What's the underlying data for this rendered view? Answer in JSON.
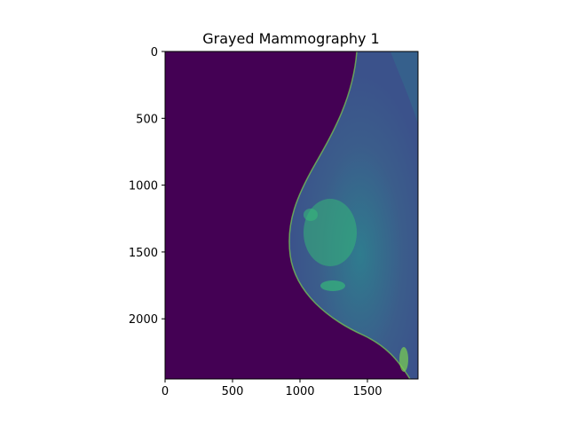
{
  "figure": {
    "title": "Grayed Mammography 1",
    "colormap": "viridis",
    "background_color": "#440154",
    "tissue_dark_color": "#3b528b",
    "tissue_mid_color": "#2f7c8e",
    "tissue_bright_color": "#35b779",
    "edge_color": "#7ad151"
  },
  "chart_data": {
    "type": "heatmap",
    "title": "Grayed Mammography 1",
    "xlabel": "",
    "ylabel": "",
    "xlim": [
      0,
      1875
    ],
    "ylim": [
      2450,
      0
    ],
    "x_ticks": [
      0,
      500,
      1000,
      1500
    ],
    "y_ticks": [
      0,
      500,
      1000,
      1500,
      2000
    ],
    "x_tick_labels": [
      "0",
      "500",
      "1000",
      "1500"
    ],
    "y_tick_labels": [
      "0",
      "500",
      "1000",
      "1500",
      "2000"
    ],
    "grid": false,
    "legend": "none"
  }
}
